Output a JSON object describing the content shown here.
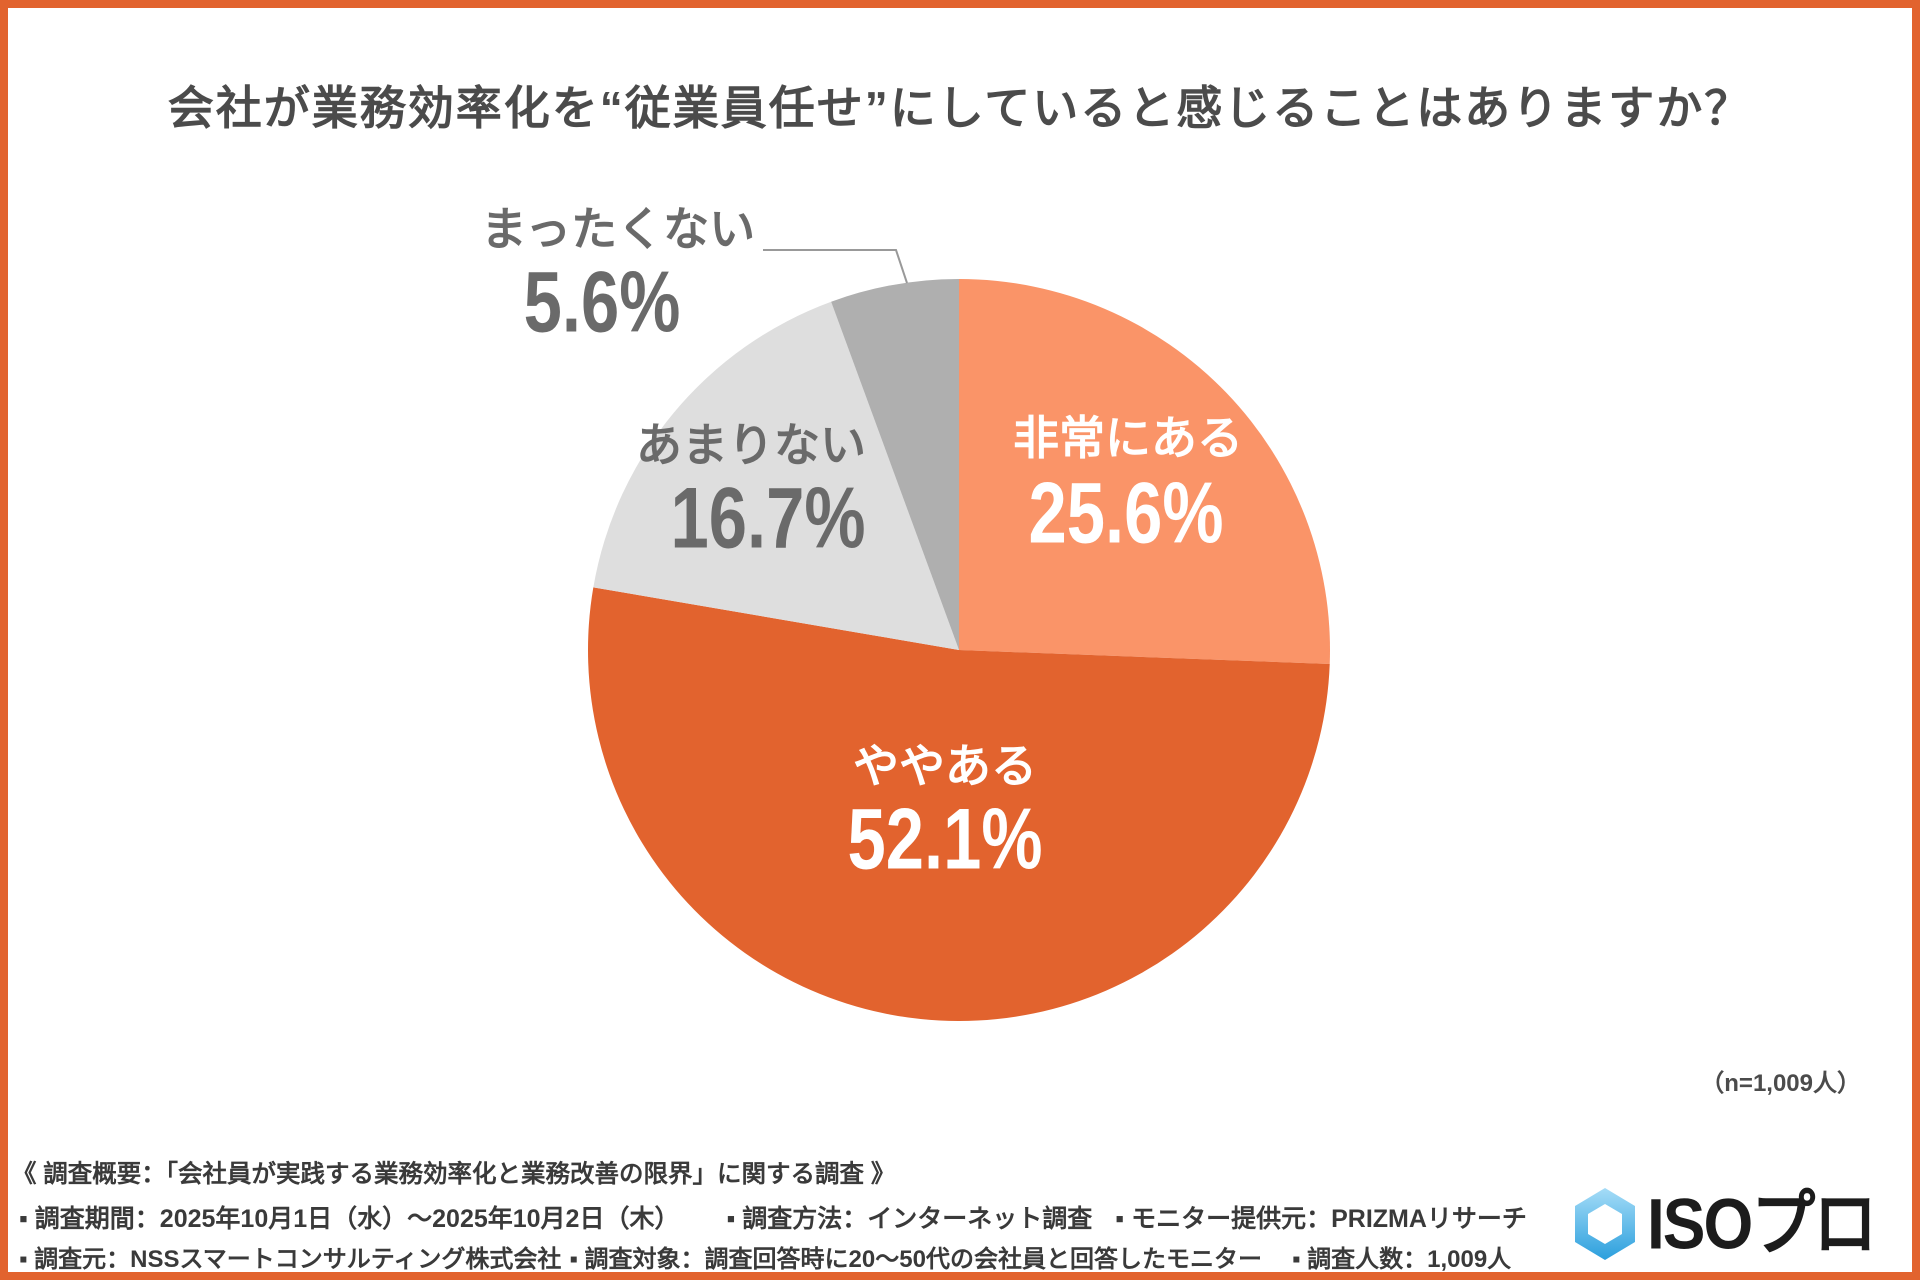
{
  "title": "会社が業務効率化を“従業員任せ”にしていると感じることはありますか？",
  "chart_data": {
    "type": "pie",
    "title": "会社が業務効率化を“従業員任せ”にしていると感じることはありますか？",
    "start_angle_deg": 0,
    "direction": "clockwise",
    "slices": [
      {
        "label": "非常にある",
        "value": 25.6,
        "pct_label": "25.6%",
        "color": "#FA9468",
        "text_color": "#FFFFFF"
      },
      {
        "label": "ややある",
        "value": 52.1,
        "pct_label": "52.1%",
        "color": "#E2632E",
        "text_color": "#FFFFFF"
      },
      {
        "label": "あまりない",
        "value": 16.7,
        "pct_label": "16.7%",
        "color": "#DEDEDE",
        "text_color": "#6A6A6A"
      },
      {
        "label": "まったくない",
        "value": 5.6,
        "pct_label": "5.6%",
        "color": "#AFAFAF",
        "text_color": "#6A6A6A"
      }
    ],
    "n_label": "（n=1,009人）"
  },
  "note": "（n=1,009人）",
  "footer": {
    "line1": "《 調査概要：「会社員が実践する業務効率化と業務改善の限界」に関する調査 》",
    "line2": [
      "▪ 調査期間：2025年10月1日（水）～2025年10月2日（木）",
      "▪ 調査方法：インターネット調査",
      "▪ モニター提供元：PRIZMAリサーチ"
    ],
    "line3": [
      "▪ 調査元：NSSスマートコンサルティング株式会社",
      "▪ 調査対象：調査回答時に20～50代の会社員と回答したモニター",
      "▪ 調査人数：1,009人"
    ]
  },
  "logo": {
    "text": "ISOプロ",
    "icon": "hexagon-icon",
    "icon_color_top": "#A5DCF7",
    "icon_color_bottom": "#2B9FDD"
  }
}
